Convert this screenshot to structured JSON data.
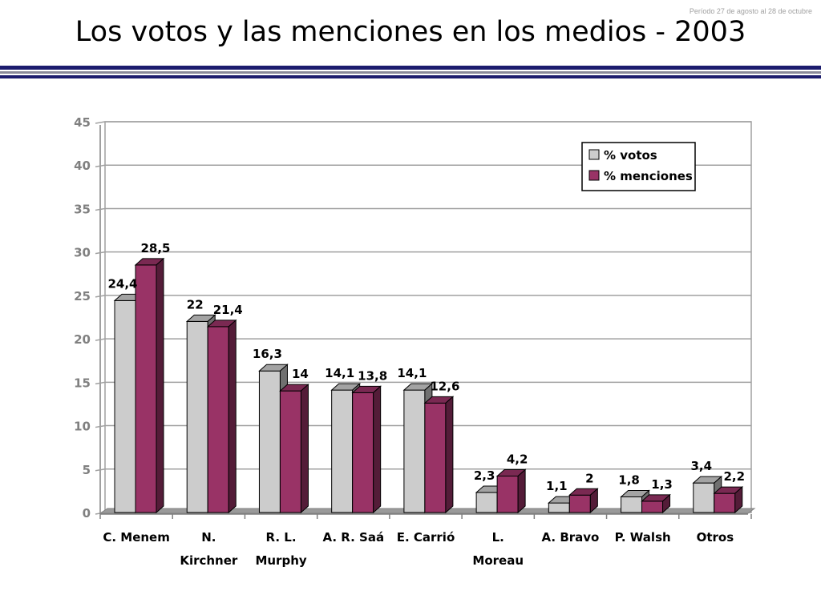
{
  "header": {
    "period": "Período 27 de agosto al 28 de octubre",
    "title": "Los votos y las menciones en los medios - 2003"
  },
  "colors": {
    "votos": "#cccccc",
    "menciones": "#993366",
    "rule_dark": "#1c1c6e",
    "grid": "#a0a0a0"
  },
  "chart_data": {
    "type": "bar",
    "title": "Los votos y las menciones en los medios - 2003",
    "categories": [
      [
        "C. Menem"
      ],
      [
        "N.",
        "Kirchner"
      ],
      [
        "R. L.",
        "Murphy"
      ],
      [
        "A. R. Saá"
      ],
      [
        "E. Carrió"
      ],
      [
        "L.",
        "Moreau"
      ],
      [
        "A. Bravo"
      ],
      [
        "P. Walsh"
      ],
      [
        "Otros"
      ]
    ],
    "series": [
      {
        "name": "% votos",
        "values": [
          24.4,
          22,
          16.3,
          14.1,
          14.1,
          2.3,
          1.1,
          1.8,
          3.4
        ],
        "labels": [
          "24,4",
          "22",
          "16,3",
          "14,1",
          "14,1",
          "2,3",
          "1,1",
          "1,8",
          "3,4"
        ]
      },
      {
        "name": "% menciones",
        "values": [
          28.5,
          21.4,
          14,
          13.8,
          12.6,
          4.2,
          2,
          1.3,
          2.2
        ],
        "labels": [
          "28,5",
          "21,4",
          "14",
          "13,8",
          "12,6",
          "4,2",
          "2",
          "1,3",
          "2,2"
        ]
      }
    ],
    "yticks": [
      "0",
      "5",
      "10",
      "15",
      "20",
      "25",
      "30",
      "35",
      "40",
      "45"
    ],
    "ylim": [
      0,
      45
    ],
    "grid": true,
    "legend_position": "top-right",
    "style": "3d-clustered-bar"
  }
}
